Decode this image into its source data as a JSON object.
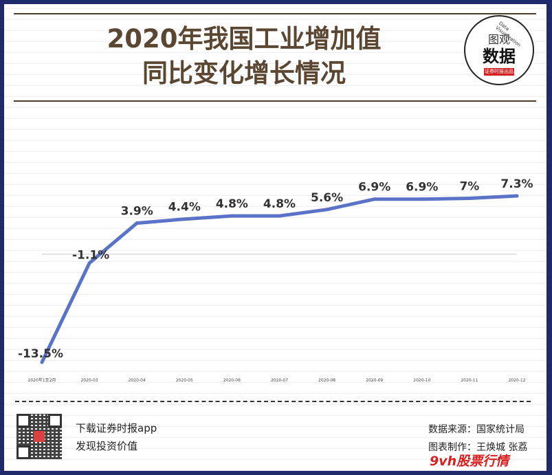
{
  "header": {
    "title_line1": "2020年我国工业增加值",
    "title_line2": "同比变化增长情况",
    "badge_top": "图观",
    "badge_main": "数据",
    "badge_strip": "证券时报出品",
    "badge_arc": "Data Visualization"
  },
  "footer": {
    "promo_line1": "下载证券时报app",
    "promo_line2": "发现投资价值",
    "source": "数据来源：国家统计局",
    "credit": "图表制作：王焕城 张荔",
    "watermark": "9vh股票行情"
  },
  "colors": {
    "line": "#5b73c7",
    "title": "#5b4632",
    "frame": "#1e2a6b"
  },
  "chart_data": {
    "type": "line",
    "categories": [
      "2020年1至2月",
      "2020-03",
      "2020-04",
      "2020-05",
      "2020-06",
      "2020-07",
      "2020-08",
      "2020-09",
      "2020-10",
      "2020-11",
      "2020-12"
    ],
    "values": [
      -13.5,
      -1.1,
      3.9,
      4.4,
      4.8,
      4.8,
      5.6,
      6.9,
      6.9,
      7,
      7.3
    ],
    "labels": [
      "-13.5%",
      "-1.1%",
      "3.9%",
      "4.4%",
      "4.8%",
      "4.8%",
      "5.6%",
      "6.9%",
      "6.9%",
      "7%",
      "7.3%"
    ],
    "ylim": [
      -13.5,
      7.3
    ],
    "grid": false,
    "legend": "none"
  }
}
